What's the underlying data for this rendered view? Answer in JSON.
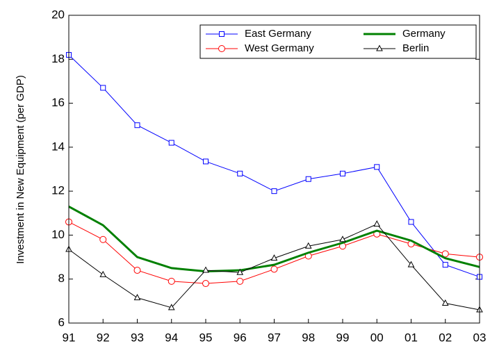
{
  "chart_data": {
    "type": "line",
    "y_label": "Investment in New Equipment (per GDP)",
    "categories": [
      "91",
      "92",
      "93",
      "94",
      "95",
      "96",
      "97",
      "98",
      "99",
      "00",
      "01",
      "02",
      "03"
    ],
    "series": [
      {
        "name": "East Germany",
        "color": "#0000ff",
        "marker": "square",
        "width": 1,
        "values": [
          18.2,
          16.7,
          15.0,
          14.2,
          13.35,
          12.8,
          12.0,
          12.55,
          12.8,
          13.1,
          10.6,
          8.65,
          8.1
        ]
      },
      {
        "name": "West Germany",
        "color": "#ff0000",
        "marker": "circle",
        "width": 1,
        "values": [
          10.6,
          9.8,
          8.4,
          7.9,
          7.8,
          7.9,
          8.45,
          9.05,
          9.5,
          10.05,
          9.6,
          9.15,
          9.0
        ]
      },
      {
        "name": "Germany",
        "color": "#008000",
        "marker": "none",
        "width": 3,
        "values": [
          11.3,
          10.45,
          9.0,
          8.5,
          8.35,
          8.4,
          8.65,
          9.2,
          9.65,
          10.2,
          9.75,
          8.95,
          8.55
        ]
      },
      {
        "name": "Berlin",
        "color": "#000000",
        "marker": "triangle",
        "width": 1,
        "values": [
          9.35,
          8.2,
          7.15,
          6.7,
          8.4,
          8.3,
          8.95,
          9.5,
          9.8,
          10.5,
          8.65,
          6.9,
          6.6
        ]
      }
    ],
    "ylim": [
      6,
      20
    ],
    "yticks": [
      6,
      8,
      10,
      12,
      14,
      16,
      18,
      20
    ],
    "grid": false,
    "legend": "top-right"
  }
}
